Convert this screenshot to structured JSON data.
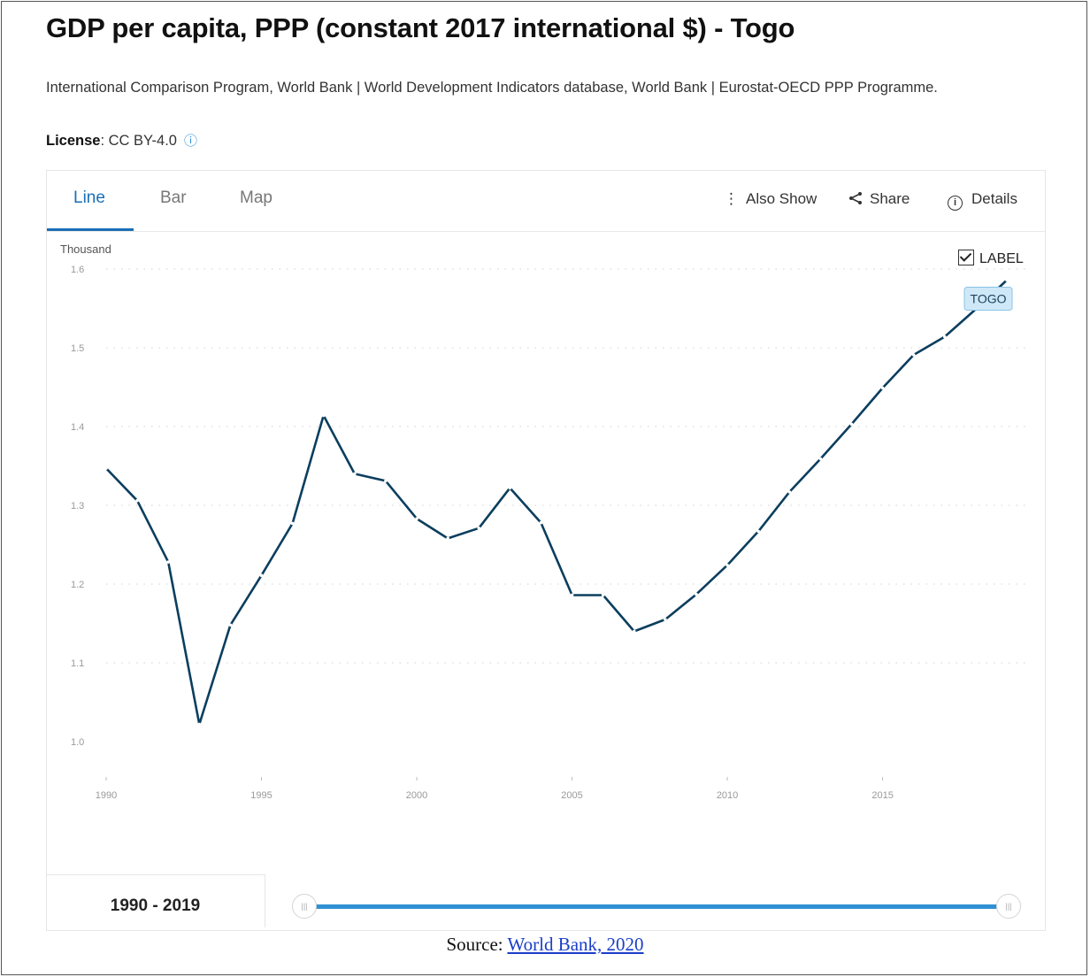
{
  "header": {
    "title": "GDP per capita, PPP (constant 2017 international $) - Togo",
    "source_description": "International Comparison Program, World Bank | World Development Indicators database, World Bank | Eurostat-OECD PPP Programme.",
    "license_label": "License",
    "license_value": ": CC BY-4.0"
  },
  "tabs": [
    {
      "label": "Line",
      "active": true
    },
    {
      "label": "Bar",
      "active": false
    },
    {
      "label": "Map",
      "active": false
    }
  ],
  "toolbar": {
    "also_show": "Also Show",
    "share": "Share",
    "details": "Details"
  },
  "label_toggle": {
    "label": "LABEL",
    "checked": true
  },
  "range": {
    "label": "1990 - 2019",
    "start": 1990,
    "end": 2019
  },
  "footer": {
    "prefix": "Source: ",
    "link_text": "World Bank, 2020"
  },
  "colors": {
    "line": "#0b3e5e",
    "accent": "#1a6fb5",
    "slider": "#2f90d4",
    "series_tag_bg": "#cfe8f7"
  },
  "chart_data": {
    "type": "line",
    "unit_label": "Thousand",
    "x": [
      1990,
      1991,
      1992,
      1993,
      1994,
      1995,
      1996,
      1997,
      1998,
      1999,
      2000,
      2001,
      2002,
      2003,
      2004,
      2005,
      2006,
      2007,
      2008,
      2009,
      2010,
      2011,
      2012,
      2013,
      2014,
      2015,
      2016,
      2017,
      2018,
      2019
    ],
    "series": [
      {
        "name": "TOGO",
        "values": [
          1.347,
          1.306,
          1.228,
          1.022,
          1.148,
          1.211,
          1.277,
          1.414,
          1.34,
          1.331,
          1.283,
          1.258,
          1.271,
          1.322,
          1.278,
          1.186,
          1.186,
          1.14,
          1.155,
          1.187,
          1.224,
          1.267,
          1.317,
          1.359,
          1.403,
          1.449,
          1.491,
          1.514,
          1.549,
          1.586
        ]
      }
    ],
    "xticks": [
      1990,
      1995,
      2000,
      2005,
      2010,
      2015
    ],
    "yticks": [
      1.0,
      1.1,
      1.2,
      1.3,
      1.4,
      1.5,
      1.6
    ],
    "ytick_labels": [
      "1.0",
      "1.1",
      "1.2",
      "1.3",
      "1.4",
      "1.5",
      "1.6"
    ],
    "ylim": [
      1.0,
      1.6
    ],
    "xlim": [
      1990,
      2019
    ],
    "grid": true,
    "series_label_position": "end-of-line"
  }
}
